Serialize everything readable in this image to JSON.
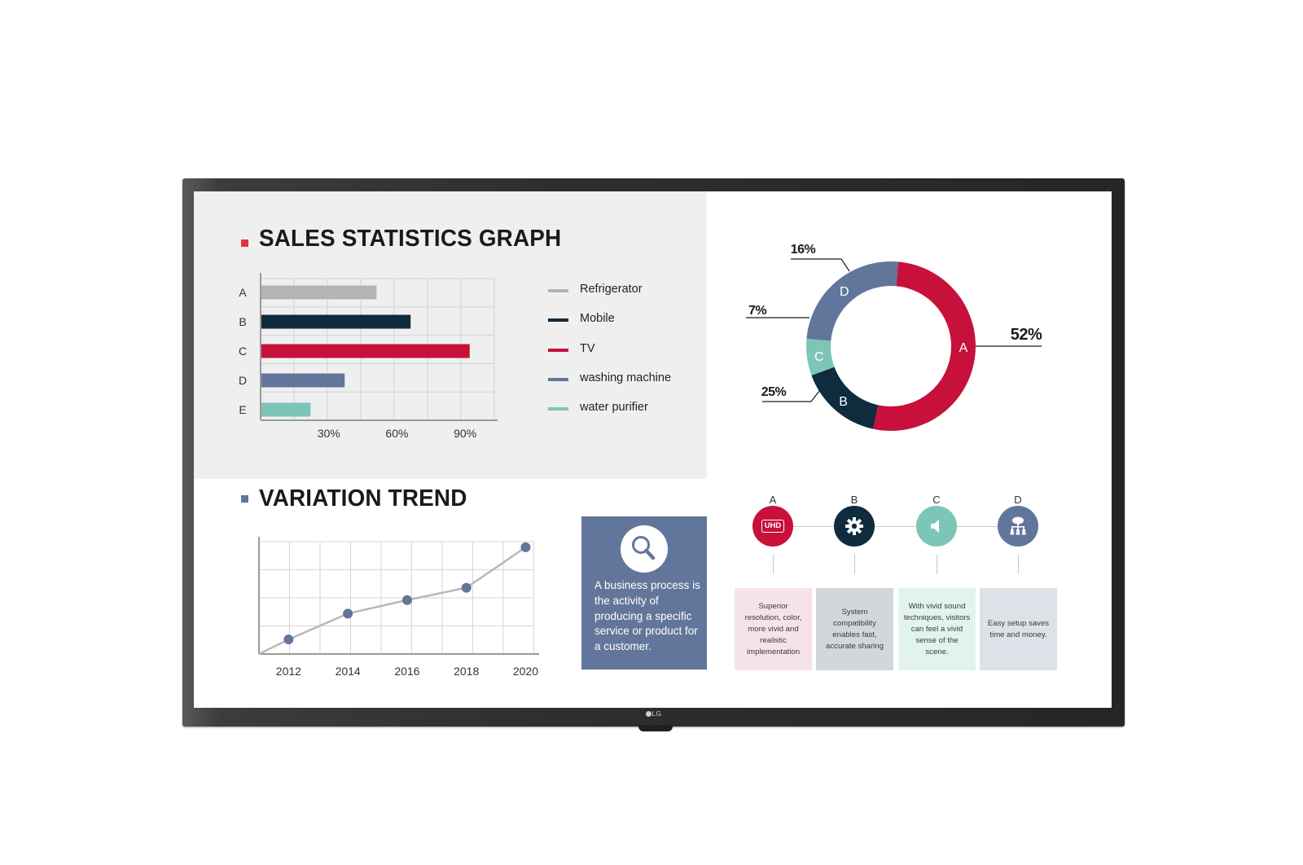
{
  "sales": {
    "title": "SALES STATISTICS GRAPH",
    "legend": [
      {
        "label": "Refrigerator",
        "color": "#b4b4b4"
      },
      {
        "label": "Mobile",
        "color": "#0f2b3e"
      },
      {
        "label": "TV",
        "color": "#c7113b"
      },
      {
        "label": "washing machine",
        "color": "#62769b"
      },
      {
        "label": "water purifier",
        "color": "#7cc6b7"
      }
    ]
  },
  "trend": {
    "title": "VARIATION TREND"
  },
  "info": {
    "text": "A business process is the activity of producing a specific service or product for a customer.",
    "icon": "magnifier-icon"
  },
  "features": [
    {
      "letter": "A",
      "icon": "uhd-icon",
      "icon_text": "UHD",
      "color": "#c7113b",
      "card_bg": "#f6e3e9",
      "text": "Superior resolution, color, more vivid and realistic implementation"
    },
    {
      "letter": "B",
      "icon": "gear-icon",
      "icon_text": "",
      "color": "#0f2b3e",
      "card_bg": "#d4d7d9",
      "text": "System compatibility enables fast, accurate sharing"
    },
    {
      "letter": "C",
      "icon": "speaker-icon",
      "icon_text": "",
      "color": "#7cc6b7",
      "card_bg": "#e2f3ef",
      "text": "With vivid sound techniques, visitors can feel a vivid sense of the scene."
    },
    {
      "letter": "D",
      "icon": "network-icon",
      "icon_text": "",
      "color": "#62769b",
      "card_bg": "#dee1e8",
      "text": "Easy setup saves time and money."
    }
  ],
  "brand": {
    "logo": "LG"
  },
  "chart_data": [
    {
      "type": "bar",
      "orientation": "horizontal",
      "title": "SALES STATISTICS GRAPH",
      "categories": [
        "A",
        "B",
        "C",
        "D",
        "E"
      ],
      "values": [
        51,
        66,
        92,
        37,
        22
      ],
      "colors": [
        "#b4b4b4",
        "#0f2b3e",
        "#c7113b",
        "#62769b",
        "#7cc6b7"
      ],
      "xticks": [
        "30%",
        "60%",
        "90%"
      ],
      "xtick_values": [
        30,
        60,
        90
      ],
      "xlim": [
        0,
        105
      ],
      "grid": true
    },
    {
      "type": "pie",
      "style": "donut",
      "labels": [
        "A",
        "B",
        "C",
        "D"
      ],
      "values": [
        52,
        16,
        7,
        25
      ],
      "display": [
        "52%",
        "16%",
        "7%",
        "25%"
      ],
      "colors": [
        "#c7113b",
        "#0f2b3e",
        "#7cc6b7",
        "#62769b"
      ]
    },
    {
      "type": "line",
      "title": "VARIATION TREND",
      "x": [
        2012,
        2014,
        2016,
        2018,
        2020
      ],
      "y": [
        13,
        36,
        48,
        59,
        95
      ],
      "ylim": [
        0,
        100
      ],
      "color": "#b8b8b8",
      "marker_color": "#62769b",
      "grid": true
    }
  ]
}
